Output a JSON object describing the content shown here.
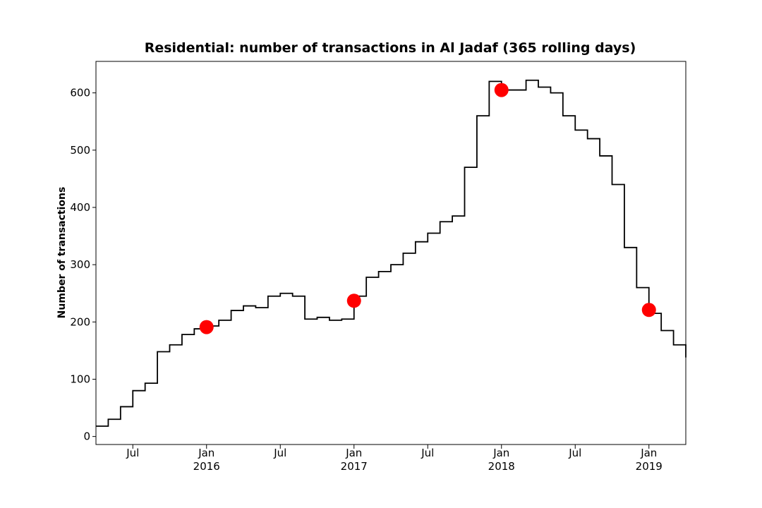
{
  "chart_data": {
    "type": "line",
    "title": "Residential: number of transactions in Al Jadaf (365 rolling days)",
    "ylabel": "Number of transactions",
    "x": [
      "2015-04",
      "2015-05",
      "2015-06",
      "2015-07",
      "2015-08",
      "2015-09",
      "2015-10",
      "2015-11",
      "2015-12",
      "2016-01",
      "2016-02",
      "2016-03",
      "2016-04",
      "2016-05",
      "2016-06",
      "2016-07",
      "2016-08",
      "2016-09",
      "2016-10",
      "2016-11",
      "2016-12",
      "2017-01",
      "2017-02",
      "2017-03",
      "2017-04",
      "2017-05",
      "2017-06",
      "2017-07",
      "2017-08",
      "2017-09",
      "2017-10",
      "2017-11",
      "2017-12",
      "2018-01",
      "2018-02",
      "2018-03",
      "2018-04",
      "2018-05",
      "2018-06",
      "2018-07",
      "2018-08",
      "2018-09",
      "2018-10",
      "2018-11",
      "2018-12",
      "2019-01",
      "2019-02",
      "2019-03",
      "2019-04"
    ],
    "series": [
      {
        "color": "#000000",
        "values": [
          18,
          30,
          52,
          80,
          93,
          148,
          160,
          178,
          188,
          193,
          203,
          220,
          228,
          225,
          245,
          250,
          245,
          205,
          208,
          203,
          205,
          245,
          278,
          288,
          300,
          320,
          340,
          355,
          375,
          385,
          470,
          560,
          620,
          605,
          605,
          622,
          610,
          600,
          560,
          535,
          520,
          490,
          440,
          330,
          260,
          215,
          185,
          160,
          138
        ]
      }
    ],
    "markers": {
      "color": "#ff0000",
      "x": [
        "2016-01",
        "2017-01",
        "2018-01",
        "2019-01"
      ],
      "values": [
        191,
        237,
        605,
        221
      ]
    },
    "xlim": [
      "2015-04",
      "2019-04"
    ],
    "ylim": [
      -14,
      655
    ],
    "yticks": [
      0,
      100,
      200,
      300,
      400,
      500,
      600
    ],
    "xticks": [
      {
        "value": "2015-07",
        "label": "Jul"
      },
      {
        "value": "2016-01",
        "label": "Jan\n2016"
      },
      {
        "value": "2016-07",
        "label": "Jul"
      },
      {
        "value": "2017-01",
        "label": "Jan\n2017"
      },
      {
        "value": "2017-07",
        "label": "Jul"
      },
      {
        "value": "2018-01",
        "label": "Jan\n2018"
      },
      {
        "value": "2018-07",
        "label": "Jul"
      },
      {
        "value": "2019-01",
        "label": "Jan\n2019"
      }
    ]
  }
}
